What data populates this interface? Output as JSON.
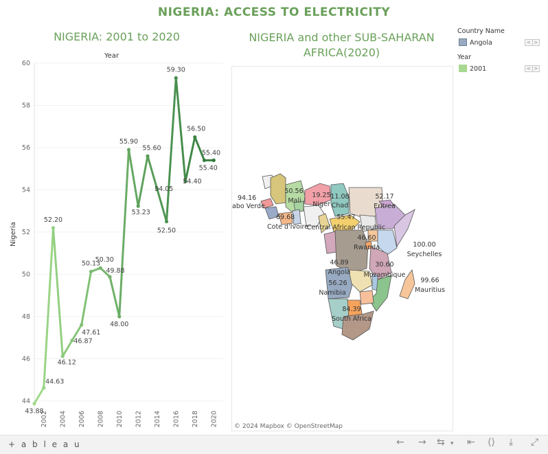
{
  "dashboard": {
    "title": "NIGERIA: ACCESS TO ELECTRICITY",
    "line_title": "NIGERIA: 2001 to 2020",
    "map_title_line1": "NIGERIA and other SUB-SAHARAN",
    "map_title_line2": "AFRICA(2020)"
  },
  "legend": {
    "country_title": "Country Name",
    "country_value": "Angola",
    "country_color": "#97aac1",
    "year_title": "Year",
    "year_value": "2001",
    "year_color": "#a8d891"
  },
  "map": {
    "attribution": "© 2024 Mapbox © OpenStreetMap",
    "labels": [
      {
        "text": "94.16",
        "name": "label-value-cabo-verde"
      },
      {
        "text": "abo Verde",
        "name": "label-cabo-verde"
      },
      {
        "text": "50.56",
        "name": "label-value-mali"
      },
      {
        "text": "Mali",
        "name": "label-mali"
      },
      {
        "text": "19.25",
        "name": "label-value-niger"
      },
      {
        "text": "Niger",
        "name": "label-niger"
      },
      {
        "text": "11.08",
        "name": "label-value-chad"
      },
      {
        "text": "Chad",
        "name": "label-chad"
      },
      {
        "text": "52.17",
        "name": "label-value-eritrea"
      },
      {
        "text": "Eritrea",
        "name": "label-eritrea"
      },
      {
        "text": "69.68",
        "name": "label-value-cote-divoire"
      },
      {
        "text": "Cote d'Ivoire",
        "name": "label-cote-divoire"
      },
      {
        "text": "55.47",
        "name": "label-value-car"
      },
      {
        "text": "Central African Republic",
        "name": "label-car"
      },
      {
        "text": "46.60",
        "name": "label-value-rwanda"
      },
      {
        "text": "Rwanda",
        "name": "label-rwanda"
      },
      {
        "text": "46.89",
        "name": "label-value-angola"
      },
      {
        "text": "Angola",
        "name": "label-angola"
      },
      {
        "text": "30.60",
        "name": "label-value-mozambique"
      },
      {
        "text": "Mozambique",
        "name": "label-mozambique"
      },
      {
        "text": "56.26",
        "name": "label-value-namibia"
      },
      {
        "text": "Namibia",
        "name": "label-namibia"
      },
      {
        "text": "84.39",
        "name": "label-value-south-africa"
      },
      {
        "text": "South Africa",
        "name": "label-south-africa"
      },
      {
        "text": "100.00",
        "name": "label-value-seychelles"
      },
      {
        "text": "Seychelles",
        "name": "label-seychelles"
      },
      {
        "text": "99.66",
        "name": "label-value-mauritius"
      },
      {
        "text": "Mauritius",
        "name": "label-mauritius"
      }
    ]
  },
  "footer": {
    "logo_text": "+ a b l e a u"
  },
  "chart_data": {
    "type": "line",
    "title": "NIGERIA: 2001 to 2020",
    "xlabel": "Year",
    "ylabel": "Nigeria",
    "x": [
      2001,
      2002,
      2003,
      2004,
      2005,
      2006,
      2007,
      2008,
      2009,
      2010,
      2011,
      2012,
      2013,
      2014,
      2015,
      2016,
      2017,
      2018,
      2019,
      2020
    ],
    "values": [
      43.88,
      44.63,
      52.2,
      46.12,
      46.87,
      47.61,
      50.13,
      50.3,
      49.88,
      48.0,
      55.9,
      53.23,
      55.6,
      54.05,
      52.5,
      59.3,
      54.4,
      56.5,
      55.4,
      55.4
    ],
    "labels": [
      "43.88",
      "44.63",
      "52.20",
      "46.12",
      "46.87",
      "47.61",
      "50.13",
      "50.30",
      "49.88",
      "48.00",
      "55.90",
      "53.23",
      "55.60",
      "54.05",
      "52.50",
      "59.30",
      "54.40",
      "56.50",
      "55.40",
      "55.40"
    ],
    "x_ticks": [
      "2002",
      "2004",
      "2006",
      "2008",
      "2010",
      "2012",
      "2014",
      "2016",
      "2018",
      "2020"
    ],
    "y_ticks": [
      "44",
      "46",
      "48",
      "50",
      "52",
      "54",
      "56",
      "58",
      "60"
    ],
    "ylim": [
      43.8,
      60
    ],
    "grid": true,
    "color_start": "#9fd98a",
    "color_end": "#2f7a3c"
  }
}
